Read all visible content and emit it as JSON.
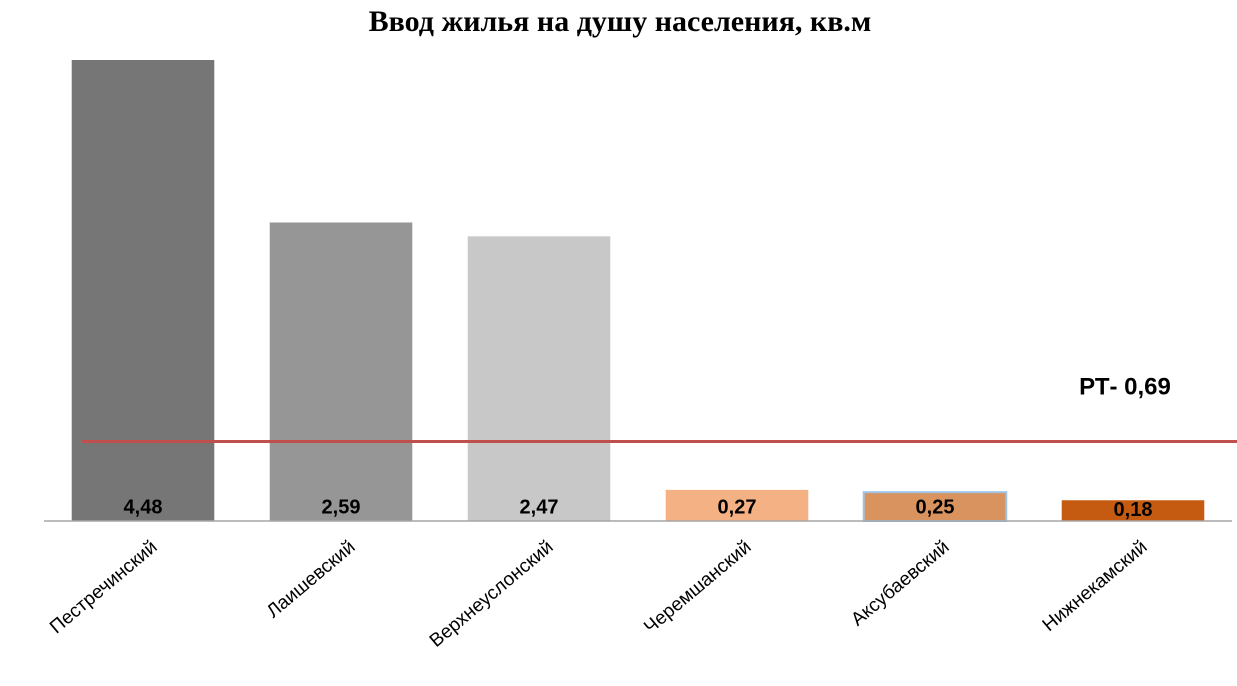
{
  "chart_data": {
    "type": "bar",
    "title": "Ввод жилья на душу населения, кв.м",
    "categories": [
      "Пестречинский",
      "Лаишевский",
      "Верхнеуслонский",
      "Черемшанский",
      "Аксубаевский",
      "Нижнекамский"
    ],
    "values": [
      4.48,
      2.59,
      2.47,
      0.27,
      0.25,
      0.18
    ],
    "value_labels": [
      "4,48",
      "2,59",
      "2,47",
      "0,27",
      "0,25",
      "0,18"
    ],
    "colors": [
      "#767676",
      "#969696",
      "#c8c8c8",
      "#f4b183",
      "#d9935f",
      "#c55a11"
    ],
    "ylim": [
      0,
      4
    ],
    "reference_line": {
      "value": 0.69,
      "label": "РТ- 0,69",
      "color": "#c0504d"
    }
  }
}
